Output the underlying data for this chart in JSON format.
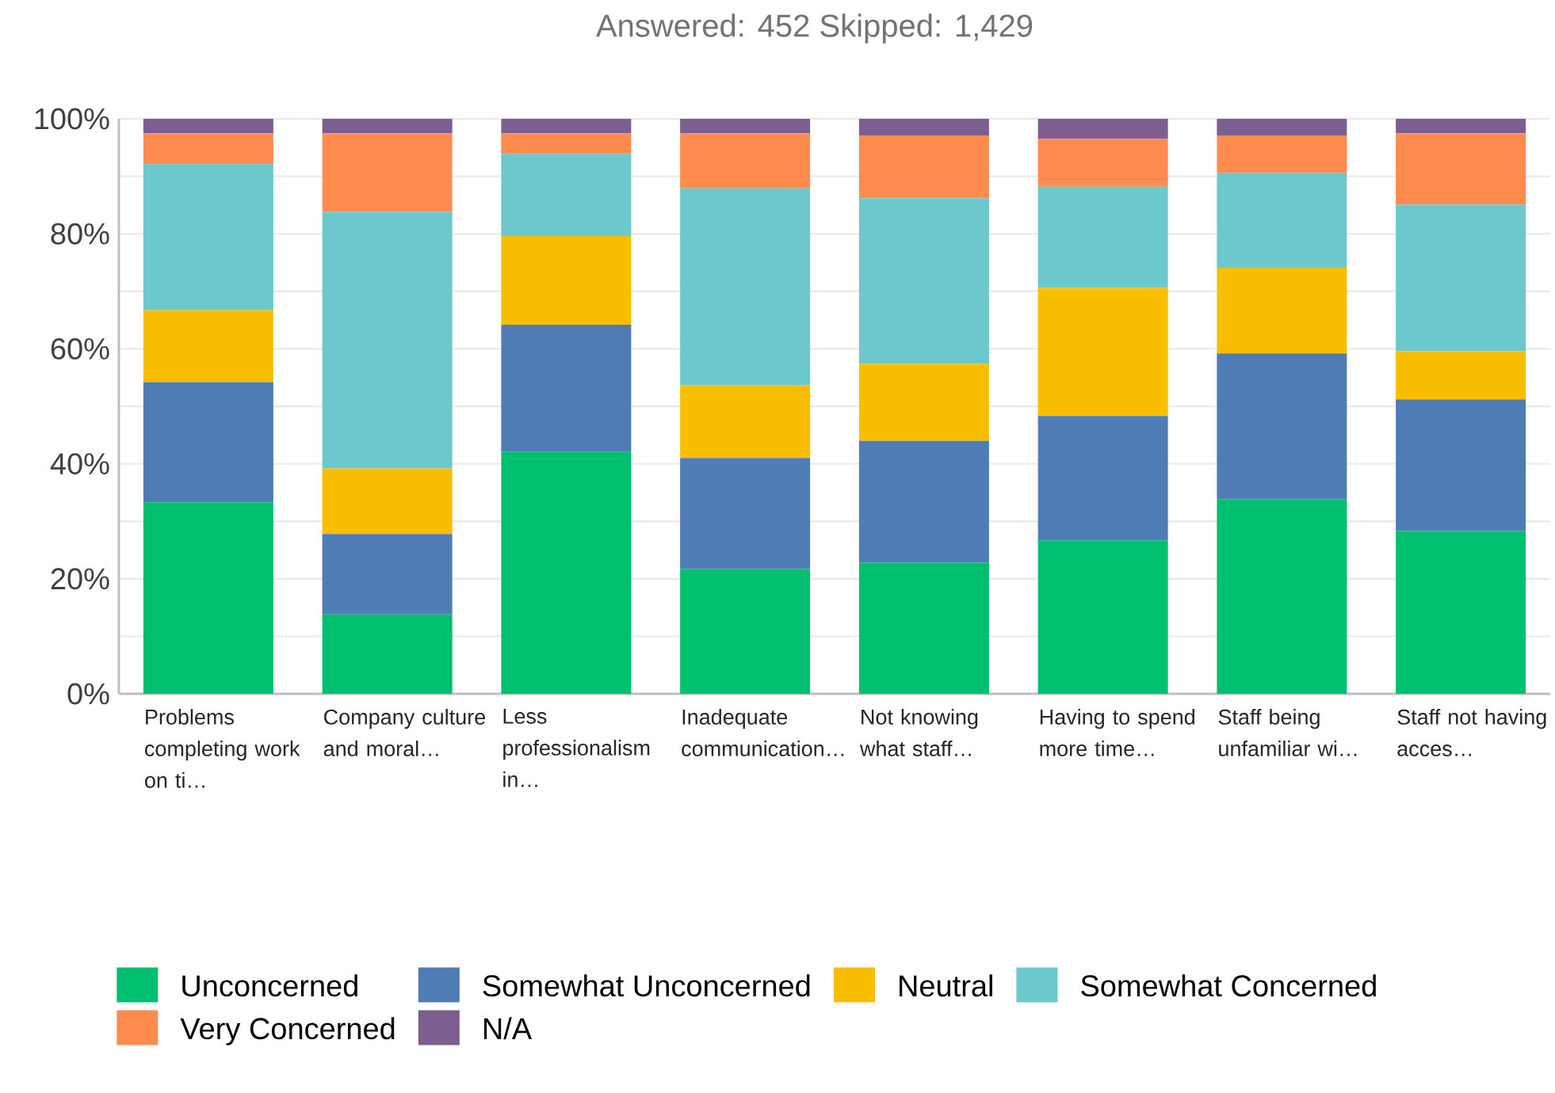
{
  "chart_data": {
    "type": "bar",
    "stacked": true,
    "title": "Answered: 452      Skipped: 1,429",
    "categories": [
      "Problems completing work on ti…",
      "Company culture and moral…",
      "Less professionalism in…",
      "Inadequate communication…",
      "Not knowing what staff…",
      "Having to spend more time…",
      "Staff being unfamiliar wi…",
      "Staff not having acces…"
    ],
    "series": [
      {
        "name": "Unconcerned",
        "color": "#00bf6f",
        "values": [
          33.3,
          13.8,
          42.1,
          21.7,
          22.8,
          26.7,
          33.8,
          28.3
        ]
      },
      {
        "name": "Somewhat Unconcerned",
        "color": "#507cb6",
        "values": [
          20.9,
          14.0,
          22.1,
          19.3,
          21.2,
          21.6,
          25.4,
          22.9
        ]
      },
      {
        "name": "Neutral",
        "color": "#f9be00",
        "values": [
          12.5,
          11.4,
          15.4,
          12.7,
          13.4,
          22.3,
          14.9,
          8.4
        ]
      },
      {
        "name": "Somewhat Concerned",
        "color": "#6bc8cd",
        "values": [
          25.4,
          44.6,
          14.3,
          34.2,
          28.8,
          17.6,
          16.5,
          25.5
        ]
      },
      {
        "name": "Very Concerned",
        "color": "#ff8b4f",
        "values": [
          5.4,
          13.7,
          3.6,
          9.6,
          10.9,
          8.3,
          6.5,
          12.4
        ]
      },
      {
        "name": "N/A",
        "color": "#7d5e90",
        "values": [
          2.5,
          2.5,
          2.5,
          2.5,
          2.9,
          3.5,
          2.9,
          2.5
        ]
      }
    ],
    "ylim": [
      0,
      100
    ],
    "yticks": [
      {
        "value": 0,
        "label": "0%"
      },
      {
        "value": 10,
        "label": null
      },
      {
        "value": 20,
        "label": "20%"
      },
      {
        "value": 30,
        "label": null
      },
      {
        "value": 40,
        "label": "40%"
      },
      {
        "value": 50,
        "label": null
      },
      {
        "value": 60,
        "label": "60%"
      },
      {
        "value": 70,
        "label": null
      },
      {
        "value": 80,
        "label": "80%"
      },
      {
        "value": 90,
        "label": null
      },
      {
        "value": 100,
        "label": "100%"
      }
    ],
    "grid": "y",
    "legend": "bottom"
  }
}
